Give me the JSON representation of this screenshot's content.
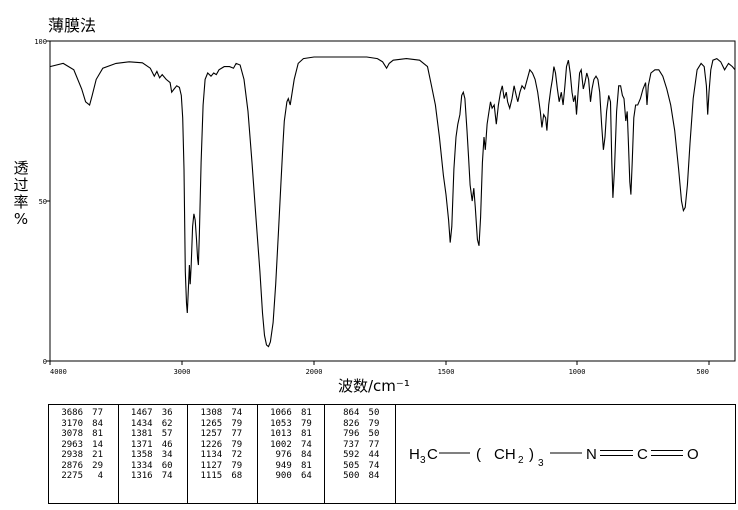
{
  "method": "薄膜法",
  "chart_data": {
    "type": "line",
    "xlabel": "波数/cm⁻¹",
    "ylabel": "透过率%",
    "xlim": [
      4000,
      400
    ],
    "ylim": [
      0,
      100
    ],
    "x_ticks": [
      "4000",
      "3000",
      "2000",
      "1500",
      "1000",
      "500"
    ],
    "y_ticks": [
      "100",
      "50",
      "0"
    ],
    "series": [
      {
        "points": [
          [
            4000,
            92
          ],
          [
            3900,
            93
          ],
          [
            3820,
            91
          ],
          [
            3760,
            85
          ],
          [
            3730,
            81
          ],
          [
            3700,
            80
          ],
          [
            3680,
            83
          ],
          [
            3650,
            88
          ],
          [
            3600,
            91.5
          ],
          [
            3500,
            93
          ],
          [
            3400,
            93.5
          ],
          [
            3300,
            93.2
          ],
          [
            3240,
            91.5
          ],
          [
            3210,
            89
          ],
          [
            3190,
            90.5
          ],
          [
            3170,
            88.5
          ],
          [
            3150,
            89.5
          ],
          [
            3120,
            88
          ],
          [
            3090,
            87
          ],
          [
            3078,
            84
          ],
          [
            3060,
            85
          ],
          [
            3040,
            86
          ],
          [
            3020,
            85.5
          ],
          [
            3005,
            83
          ],
          [
            2995,
            76
          ],
          [
            2985,
            60
          ],
          [
            2975,
            28
          ],
          [
            2966,
            18
          ],
          [
            2960,
            15
          ],
          [
            2952,
            22
          ],
          [
            2944,
            30
          ],
          [
            2938,
            24
          ],
          [
            2930,
            30
          ],
          [
            2920,
            42
          ],
          [
            2910,
            46
          ],
          [
            2900,
            44
          ],
          [
            2890,
            38
          ],
          [
            2882,
            32
          ],
          [
            2876,
            30
          ],
          [
            2868,
            40
          ],
          [
            2855,
            62
          ],
          [
            2840,
            80
          ],
          [
            2825,
            88
          ],
          [
            2805,
            90
          ],
          [
            2780,
            89
          ],
          [
            2760,
            90
          ],
          [
            2740,
            89.5
          ],
          [
            2720,
            91
          ],
          [
            2680,
            92
          ],
          [
            2640,
            92
          ],
          [
            2610,
            91.5
          ],
          [
            2590,
            93
          ],
          [
            2560,
            92.5
          ],
          [
            2530,
            88
          ],
          [
            2500,
            78
          ],
          [
            2470,
            62
          ],
          [
            2440,
            45
          ],
          [
            2410,
            28
          ],
          [
            2390,
            15
          ],
          [
            2375,
            8
          ],
          [
            2360,
            5
          ],
          [
            2345,
            4.5
          ],
          [
            2330,
            6
          ],
          [
            2310,
            12
          ],
          [
            2290,
            24
          ],
          [
            2270,
            40
          ],
          [
            2250,
            56
          ],
          [
            2235,
            68
          ],
          [
            2225,
            75
          ],
          [
            2215,
            78
          ],
          [
            2205,
            81
          ],
          [
            2195,
            82
          ],
          [
            2180,
            80
          ],
          [
            2150,
            88
          ],
          [
            2120,
            93
          ],
          [
            2080,
            94.5
          ],
          [
            2000,
            95
          ],
          [
            1900,
            95
          ],
          [
            1800,
            95
          ],
          [
            1760,
            94.5
          ],
          [
            1740,
            93.5
          ],
          [
            1725,
            91.5
          ],
          [
            1715,
            93
          ],
          [
            1700,
            94
          ],
          [
            1650,
            94.5
          ],
          [
            1600,
            94
          ],
          [
            1570,
            92
          ],
          [
            1555,
            86
          ],
          [
            1540,
            80
          ],
          [
            1525,
            70
          ],
          [
            1510,
            58
          ],
          [
            1500,
            52
          ],
          [
            1490,
            44
          ],
          [
            1484,
            37
          ],
          [
            1478,
            42
          ],
          [
            1470,
            60
          ],
          [
            1462,
            70
          ],
          [
            1455,
            74
          ],
          [
            1447,
            77
          ],
          [
            1440,
            83
          ],
          [
            1434,
            84
          ],
          [
            1428,
            82
          ],
          [
            1420,
            72
          ],
          [
            1414,
            64
          ],
          [
            1408,
            55
          ],
          [
            1400,
            50
          ],
          [
            1394,
            54
          ],
          [
            1388,
            48
          ],
          [
            1380,
            38
          ],
          [
            1374,
            36
          ],
          [
            1368,
            45
          ],
          [
            1361,
            62
          ],
          [
            1355,
            70
          ],
          [
            1350,
            66
          ],
          [
            1343,
            74
          ],
          [
            1336,
            78
          ],
          [
            1330,
            81
          ],
          [
            1324,
            79
          ],
          [
            1316,
            80
          ],
          [
            1308,
            74
          ],
          [
            1300,
            80
          ],
          [
            1292,
            84
          ],
          [
            1285,
            86
          ],
          [
            1278,
            82
          ],
          [
            1270,
            84
          ],
          [
            1265,
            81
          ],
          [
            1257,
            79
          ],
          [
            1248,
            82
          ],
          [
            1240,
            86
          ],
          [
            1232,
            83
          ],
          [
            1226,
            81
          ],
          [
            1218,
            84
          ],
          [
            1210,
            86
          ],
          [
            1200,
            85
          ],
          [
            1190,
            88
          ],
          [
            1180,
            91
          ],
          [
            1170,
            90
          ],
          [
            1160,
            88
          ],
          [
            1150,
            84
          ],
          [
            1140,
            78
          ],
          [
            1134,
            73
          ],
          [
            1127,
            77
          ],
          [
            1120,
            76
          ],
          [
            1115,
            72
          ],
          [
            1108,
            80
          ],
          [
            1100,
            85
          ],
          [
            1094,
            88
          ],
          [
            1088,
            92
          ],
          [
            1082,
            90
          ],
          [
            1075,
            85
          ],
          [
            1068,
            81
          ],
          [
            1060,
            84
          ],
          [
            1053,
            80
          ],
          [
            1046,
            86
          ],
          [
            1040,
            92
          ],
          [
            1033,
            94
          ],
          [
            1026,
            90
          ],
          [
            1019,
            84
          ],
          [
            1013,
            81
          ],
          [
            1007,
            83
          ],
          [
            1002,
            77
          ],
          [
            996,
            84
          ],
          [
            990,
            90
          ],
          [
            984,
            91
          ],
          [
            976,
            85
          ],
          [
            970,
            87
          ],
          [
            963,
            90
          ],
          [
            956,
            88
          ],
          [
            949,
            81
          ],
          [
            943,
            85
          ],
          [
            936,
            88
          ],
          [
            928,
            89
          ],
          [
            921,
            88
          ],
          [
            914,
            84
          ],
          [
            907,
            74
          ],
          [
            900,
            66
          ],
          [
            894,
            70
          ],
          [
            888,
            78
          ],
          [
            880,
            83
          ],
          [
            873,
            81
          ],
          [
            868,
            62
          ],
          [
            864,
            51
          ],
          [
            858,
            60
          ],
          [
            850,
            78
          ],
          [
            842,
            86
          ],
          [
            835,
            86
          ],
          [
            828,
            83
          ],
          [
            822,
            82
          ],
          [
            815,
            75
          ],
          [
            810,
            78
          ],
          [
            806,
            70
          ],
          [
            800,
            56
          ],
          [
            796,
            52
          ],
          [
            791,
            62
          ],
          [
            785,
            76
          ],
          [
            778,
            80
          ],
          [
            770,
            80
          ],
          [
            760,
            82
          ],
          [
            750,
            85
          ],
          [
            740,
            87
          ],
          [
            735,
            80
          ],
          [
            730,
            86
          ],
          [
            720,
            90
          ],
          [
            705,
            91
          ],
          [
            690,
            91
          ],
          [
            675,
            89
          ],
          [
            660,
            85
          ],
          [
            645,
            80
          ],
          [
            630,
            72
          ],
          [
            615,
            60
          ],
          [
            604,
            50
          ],
          [
            597,
            47
          ],
          [
            590,
            48
          ],
          [
            582,
            55
          ],
          [
            572,
            68
          ],
          [
            560,
            82
          ],
          [
            545,
            91
          ],
          [
            530,
            93
          ],
          [
            518,
            92
          ],
          [
            510,
            86
          ],
          [
            505,
            77
          ],
          [
            500,
            84
          ],
          [
            493,
            91
          ],
          [
            485,
            94
          ],
          [
            470,
            94.5
          ],
          [
            455,
            93.5
          ],
          [
            440,
            91
          ],
          [
            425,
            93
          ],
          [
            410,
            92
          ],
          [
            400,
            91
          ]
        ]
      }
    ]
  },
  "peak_table": [
    [
      [
        "3686",
        "77"
      ],
      [
        "3170",
        "84"
      ],
      [
        "3078",
        "81"
      ],
      [
        "2963",
        "14"
      ],
      [
        "2938",
        "21"
      ],
      [
        "2876",
        "29"
      ],
      [
        "2275",
        "4"
      ]
    ],
    [
      [
        "1467",
        "36"
      ],
      [
        "1434",
        "62"
      ],
      [
        "1381",
        "57"
      ],
      [
        "1371",
        "46"
      ],
      [
        "1358",
        "34"
      ],
      [
        "1334",
        "60"
      ],
      [
        "1316",
        "74"
      ]
    ],
    [
      [
        "1308",
        "74"
      ],
      [
        "1265",
        "79"
      ],
      [
        "1257",
        "77"
      ],
      [
        "1226",
        "79"
      ],
      [
        "1134",
        "72"
      ],
      [
        "1127",
        "79"
      ],
      [
        "1115",
        "68"
      ]
    ],
    [
      [
        "1066",
        "81"
      ],
      [
        "1053",
        "79"
      ],
      [
        "1013",
        "81"
      ],
      [
        "1002",
        "74"
      ],
      [
        "976",
        "84"
      ],
      [
        "949",
        "81"
      ],
      [
        "900",
        "64"
      ]
    ],
    [
      [
        "864",
        "50"
      ],
      [
        "826",
        "79"
      ],
      [
        "796",
        "50"
      ],
      [
        "737",
        "77"
      ],
      [
        "592",
        "44"
      ],
      [
        "505",
        "74"
      ],
      [
        "500",
        "84"
      ]
    ]
  ],
  "structure": {
    "groups": [
      "H",
      "3",
      "C",
      "(",
      "CH",
      "2",
      ")",
      "3",
      "N",
      "C",
      "O"
    ]
  }
}
